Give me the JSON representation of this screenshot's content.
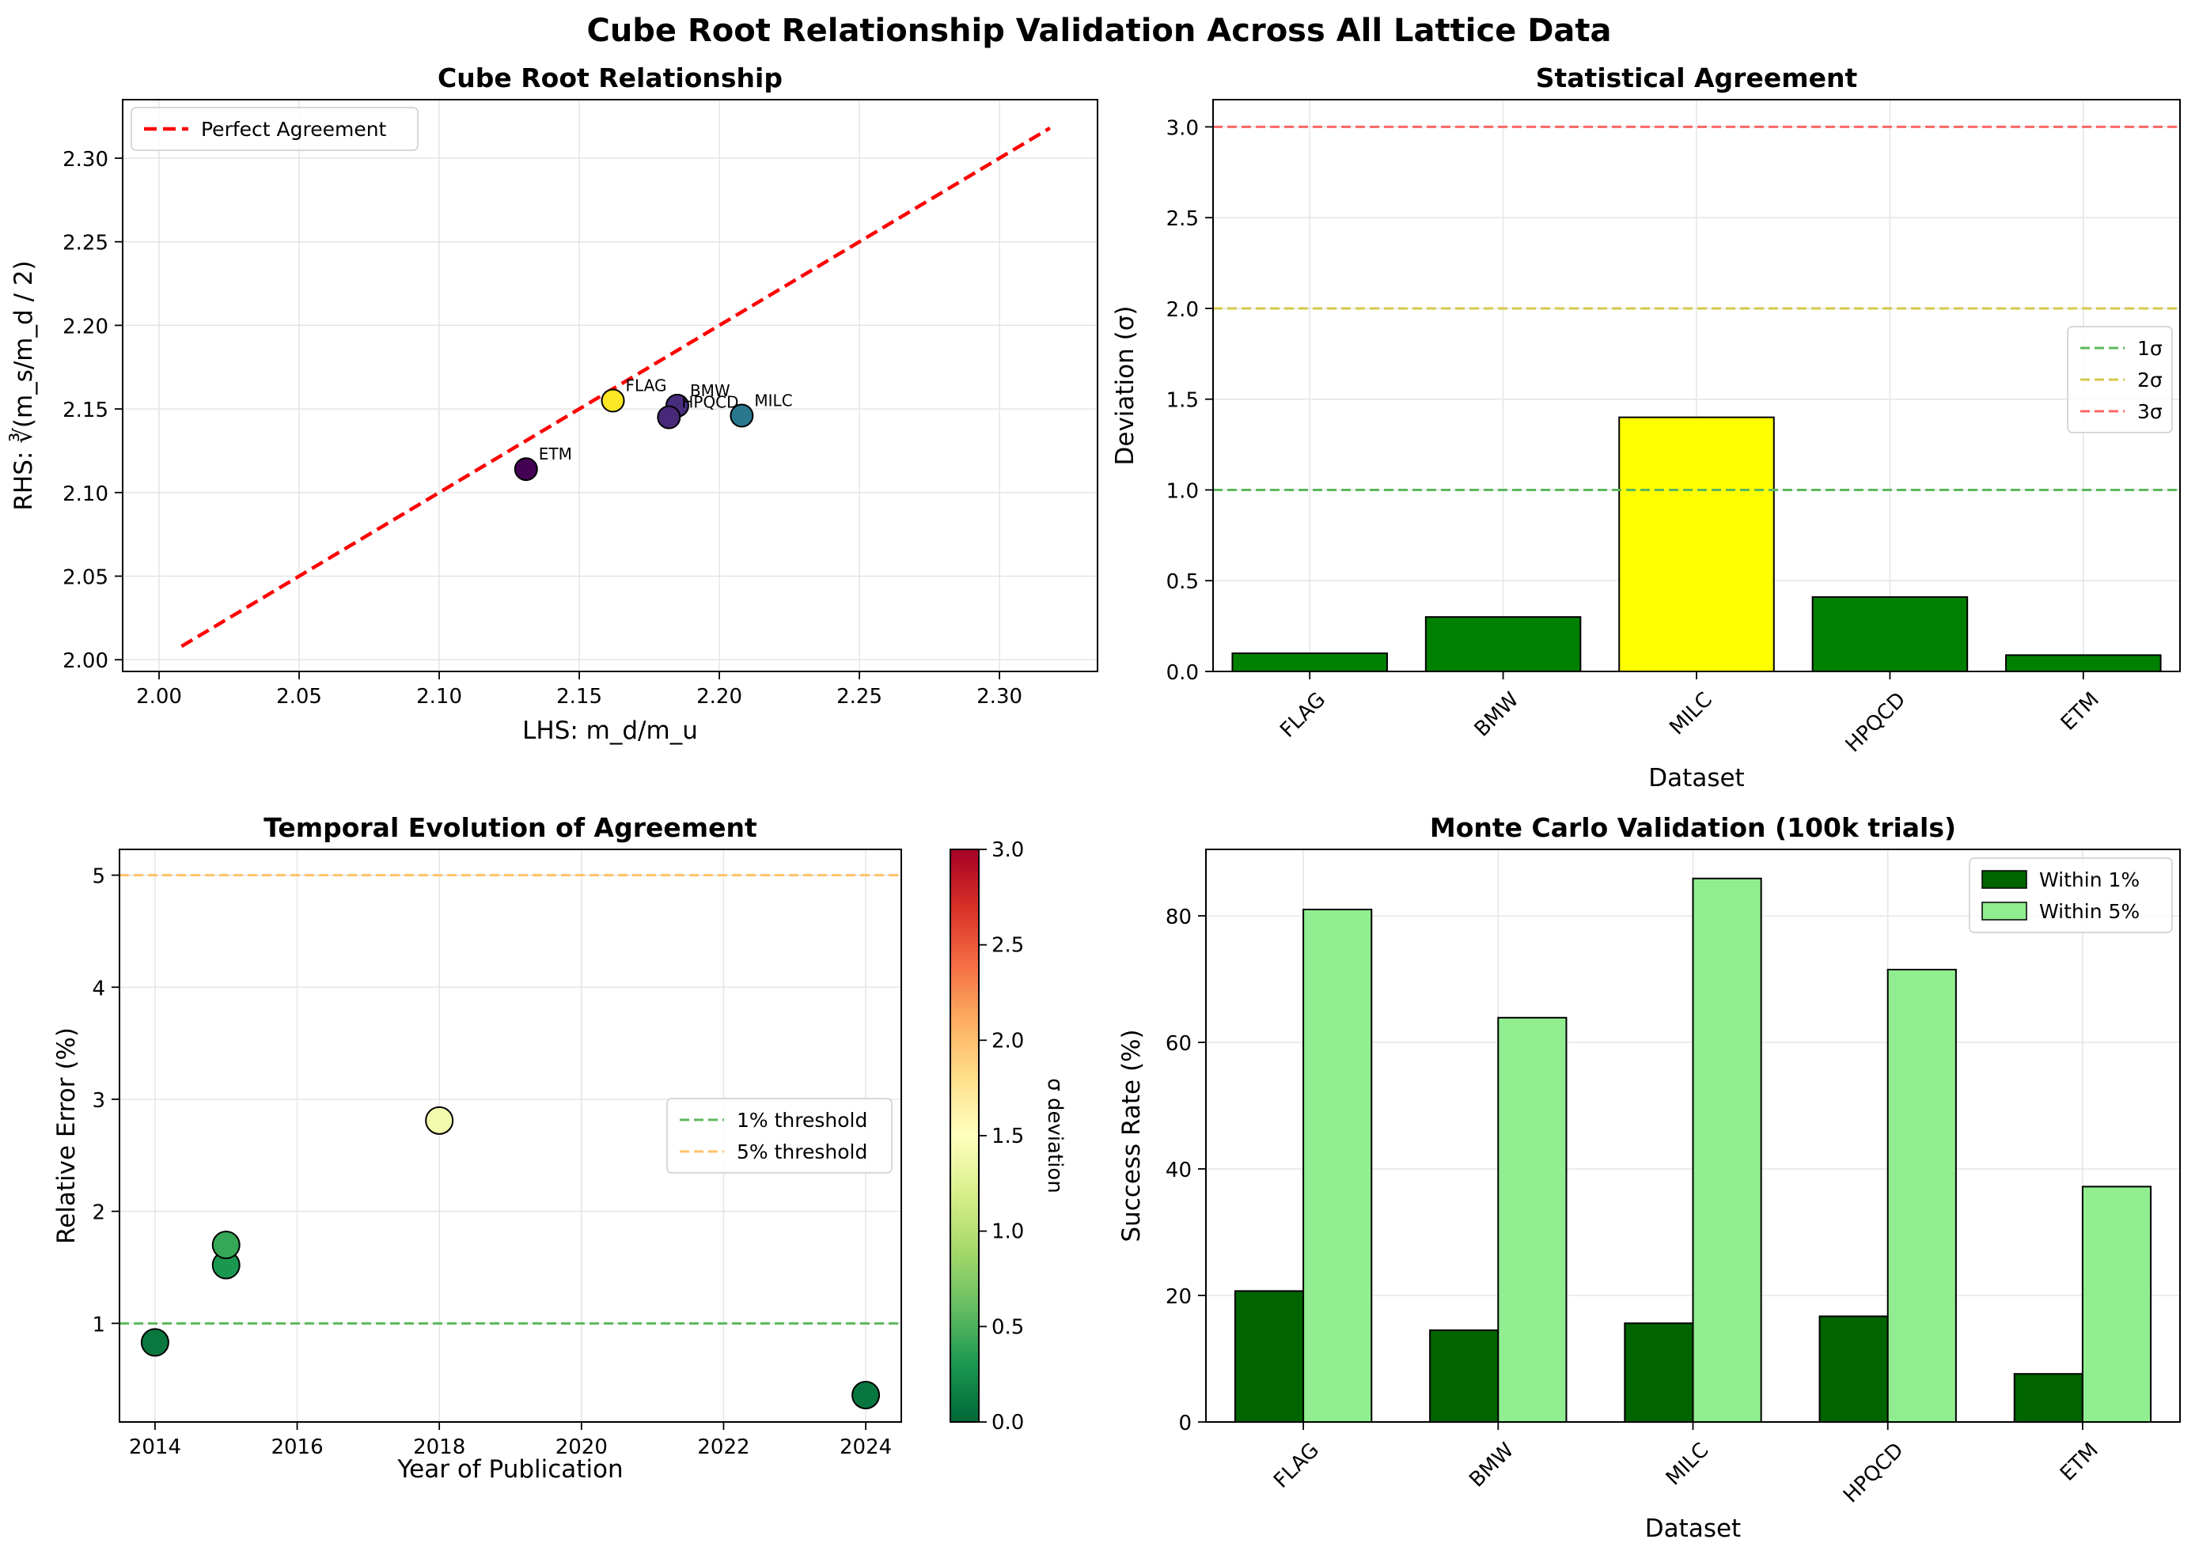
{
  "figure_title": "Cube Root Relationship Validation Across All Lattice Data",
  "colors": {
    "perfect_line": "#ff0000",
    "one_sigma": "#5cb85c",
    "two_sigma": "#d4c94a",
    "three_sigma": "#ff6666",
    "five_pct": "#ffc266",
    "bar_green": "#008000",
    "bar_yellow": "#ffff00",
    "mc_dark": "#006400",
    "mc_light": "#90ee90"
  },
  "chart_data": [
    {
      "type": "scatter",
      "title": "Cube Root Relationship",
      "xlabel": "LHS: m_d/m_u",
      "ylabel": "RHS: ∛(m_s/m_d / 2)",
      "xlim": [
        1.987,
        2.335
      ],
      "ylim": [
        1.993,
        2.335
      ],
      "xticks": [
        "2.00",
        "2.05",
        "2.10",
        "2.15",
        "2.20",
        "2.25",
        "2.30"
      ],
      "yticks": [
        "2.00",
        "2.05",
        "2.10",
        "2.15",
        "2.20",
        "2.25",
        "2.30"
      ],
      "grid": true,
      "legend": {
        "placement": "upper-left",
        "entries": [
          "Perfect Agreement"
        ]
      },
      "line": {
        "name": "Perfect Agreement",
        "x": [
          2.008,
          2.318
        ],
        "y": [
          2.008,
          2.318
        ]
      },
      "points": [
        {
          "label": "FLAG",
          "x": 2.162,
          "y": 2.155,
          "color": "#fde725"
        },
        {
          "label": "BMW",
          "x": 2.185,
          "y": 2.152,
          "color": "#472d7b"
        },
        {
          "label": "MILC",
          "x": 2.208,
          "y": 2.146,
          "color": "#2a788e"
        },
        {
          "label": "HPQCD",
          "x": 2.182,
          "y": 2.145,
          "color": "#482878"
        },
        {
          "label": "ETM",
          "x": 2.131,
          "y": 2.114,
          "color": "#440154"
        }
      ]
    },
    {
      "type": "bar",
      "title": "Statistical Agreement",
      "xlabel": "Dataset",
      "ylabel": "Deviation (σ)",
      "ylim": [
        0,
        3.15
      ],
      "yticks": [
        "0.0",
        "0.5",
        "1.0",
        "1.5",
        "2.0",
        "2.5",
        "3.0"
      ],
      "grid": true,
      "categories": [
        "FLAG",
        "BMW",
        "MILC",
        "HPQCD",
        "ETM"
      ],
      "values": [
        0.1,
        0.3,
        1.4,
        0.41,
        0.09
      ],
      "bar_colors": [
        "#008000",
        "#008000",
        "#ffff00",
        "#008000",
        "#008000"
      ],
      "reference_lines": [
        {
          "name": "1σ",
          "y": 1.0,
          "color": "#5cb85c"
        },
        {
          "name": "2σ",
          "y": 2.0,
          "color": "#d4c94a"
        },
        {
          "name": "3σ",
          "y": 3.0,
          "color": "#ff6666"
        }
      ],
      "legend": {
        "placement": "center-right",
        "entries": [
          "1σ",
          "2σ",
          "3σ"
        ]
      }
    },
    {
      "type": "scatter",
      "title": "Temporal Evolution of Agreement",
      "xlabel": "Year of Publication",
      "ylabel": "Relative Error (%)",
      "xlim": [
        2013.5,
        2024.5
      ],
      "ylim": [
        0.12,
        5.23
      ],
      "xticks": [
        "2014",
        "2016",
        "2018",
        "2020",
        "2022",
        "2024"
      ],
      "yticks": [
        "1",
        "2",
        "3",
        "4",
        "5"
      ],
      "grid": true,
      "points": [
        {
          "x": 2014,
          "y": 0.83,
          "sigma": 0.1
        },
        {
          "x": 2015,
          "y": 1.52,
          "sigma": 0.3
        },
        {
          "x": 2015,
          "y": 1.7,
          "sigma": 0.41
        },
        {
          "x": 2018,
          "y": 2.81,
          "sigma": 1.4
        },
        {
          "x": 2024,
          "y": 0.36,
          "sigma": 0.09
        }
      ],
      "reference_lines": [
        {
          "name": "1% threshold",
          "y": 1,
          "color": "#5cb85c"
        },
        {
          "name": "5% threshold",
          "y": 5,
          "color": "#ffc266"
        }
      ],
      "legend": {
        "placement": "center-right",
        "entries": [
          "1% threshold",
          "5% threshold"
        ]
      },
      "colorbar": {
        "label": "σ deviation",
        "range": [
          0,
          3
        ],
        "ticks": [
          "0.0",
          "0.5",
          "1.0",
          "1.5",
          "2.0",
          "2.5",
          "3.0"
        ],
        "colormap": "RdYlGn_r"
      }
    },
    {
      "type": "bar",
      "title": "Monte Carlo Validation (100k trials)",
      "xlabel": "Dataset",
      "ylabel": "Success Rate (%)",
      "ylim": [
        0,
        90.5
      ],
      "yticks": [
        "0",
        "20",
        "40",
        "60",
        "80"
      ],
      "grid": true,
      "categories": [
        "FLAG",
        "BMW",
        "MILC",
        "HPQCD",
        "ETM"
      ],
      "series": [
        {
          "name": "Within 1%",
          "values": [
            20.7,
            14.5,
            15.6,
            16.7,
            7.6
          ],
          "color": "#006400"
        },
        {
          "name": "Within 5%",
          "values": [
            81.0,
            63.9,
            85.9,
            71.5,
            37.2
          ],
          "color": "#90ee90"
        }
      ],
      "legend": {
        "placement": "upper-right",
        "entries": [
          "Within 1%",
          "Within 5%"
        ]
      }
    }
  ]
}
